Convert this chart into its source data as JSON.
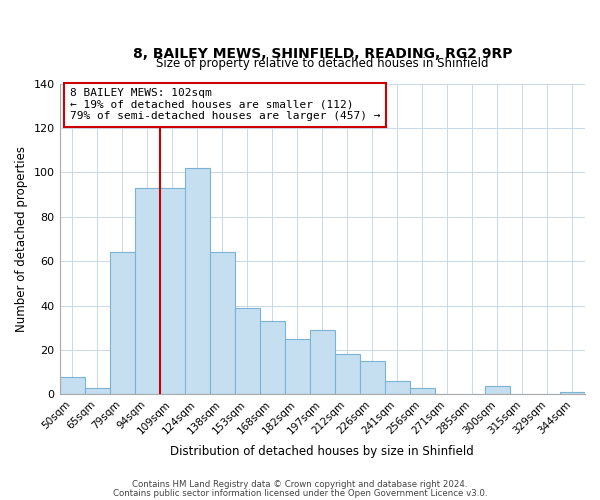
{
  "title": "8, BAILEY MEWS, SHINFIELD, READING, RG2 9RP",
  "subtitle": "Size of property relative to detached houses in Shinfield",
  "xlabel": "Distribution of detached houses by size in Shinfield",
  "ylabel": "Number of detached properties",
  "footer_line1": "Contains HM Land Registry data © Crown copyright and database right 2024.",
  "footer_line2": "Contains public sector information licensed under the Open Government Licence v3.0.",
  "bar_labels": [
    "50sqm",
    "65sqm",
    "79sqm",
    "94sqm",
    "109sqm",
    "124sqm",
    "138sqm",
    "153sqm",
    "168sqm",
    "182sqm",
    "197sqm",
    "212sqm",
    "226sqm",
    "241sqm",
    "256sqm",
    "271sqm",
    "285sqm",
    "300sqm",
    "315sqm",
    "329sqm",
    "344sqm"
  ],
  "bar_values": [
    8,
    3,
    64,
    93,
    93,
    102,
    64,
    39,
    33,
    25,
    29,
    18,
    15,
    6,
    3,
    0,
    0,
    4,
    0,
    0,
    1
  ],
  "bar_color": "#c6dff0",
  "bar_edge_color": "#7ab3d4",
  "vline_color": "#cc0000",
  "annotation_line1": "8 BAILEY MEWS: 102sqm",
  "annotation_line2": "← 19% of detached houses are smaller (112)",
  "annotation_line3": "79% of semi-detached houses are larger (457) →",
  "annotation_box_color": "#ffffff",
  "annotation_box_edge": "#cc0000",
  "ylim": [
    0,
    140
  ],
  "yticks": [
    0,
    20,
    40,
    60,
    80,
    100,
    120,
    140
  ],
  "background_color": "#ffffff",
  "grid_color": "#c8d8e8"
}
